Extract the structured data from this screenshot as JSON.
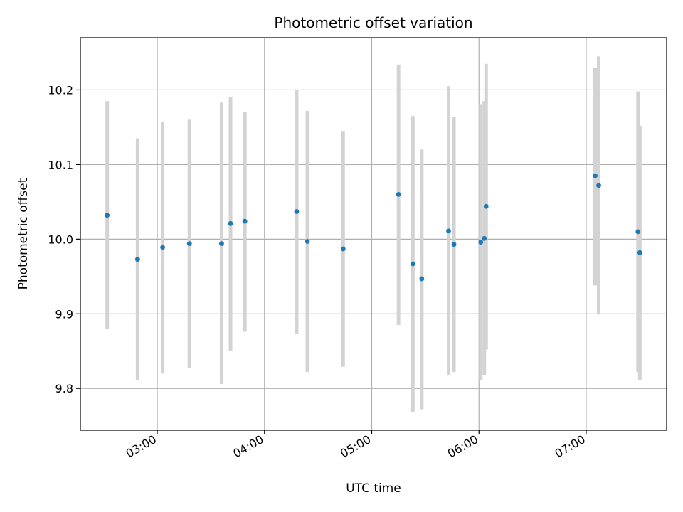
{
  "chart_data": {
    "type": "scatter",
    "title": "Photometric offset variation",
    "xlabel": "UTC time",
    "ylabel": "Photometric offset",
    "x_unit": "hours UTC",
    "xlim": [
      "02:17",
      "07:45"
    ],
    "ylim": [
      9.744,
      10.27
    ],
    "x_ticks": [
      "03:00",
      "04:00",
      "05:00",
      "06:00",
      "07:00"
    ],
    "y_ticks": [
      "9.8",
      "9.9",
      "10.0",
      "10.1",
      "10.2"
    ],
    "grid": true,
    "colors": {
      "point": "#1f77b4",
      "errorbar": "#d3d3d3",
      "grid": "#b0b0b0"
    },
    "points": [
      {
        "x": "02:32",
        "y": 10.032,
        "low": 9.88,
        "high": 10.185
      },
      {
        "x": "02:49",
        "y": 9.973,
        "low": 9.811,
        "high": 10.135
      },
      {
        "x": "03:03",
        "y": 9.989,
        "low": 9.82,
        "high": 10.157
      },
      {
        "x": "03:18",
        "y": 9.994,
        "low": 9.828,
        "high": 10.16
      },
      {
        "x": "03:36",
        "y": 9.994,
        "low": 9.806,
        "high": 10.183
      },
      {
        "x": "03:41",
        "y": 10.021,
        "low": 9.85,
        "high": 10.191
      },
      {
        "x": "03:49",
        "y": 10.024,
        "low": 9.876,
        "high": 10.17
      },
      {
        "x": "04:18",
        "y": 10.037,
        "low": 9.873,
        "high": 10.2
      },
      {
        "x": "04:24",
        "y": 9.997,
        "low": 9.822,
        "high": 10.172
      },
      {
        "x": "04:44",
        "y": 9.987,
        "low": 9.829,
        "high": 10.145
      },
      {
        "x": "05:15",
        "y": 10.06,
        "low": 9.885,
        "high": 10.234
      },
      {
        "x": "05:23",
        "y": 9.967,
        "low": 9.768,
        "high": 10.165
      },
      {
        "x": "05:28",
        "y": 9.947,
        "low": 9.772,
        "high": 10.12
      },
      {
        "x": "05:43",
        "y": 10.011,
        "low": 9.818,
        "high": 10.205
      },
      {
        "x": "05:46",
        "y": 9.993,
        "low": 9.822,
        "high": 10.164
      },
      {
        "x": "06:01",
        "y": 9.996,
        "low": 9.811,
        "high": 10.181
      },
      {
        "x": "06:03",
        "y": 10.001,
        "low": 9.818,
        "high": 10.185
      },
      {
        "x": "06:04",
        "y": 10.044,
        "low": 9.852,
        "high": 10.235
      },
      {
        "x": "07:05",
        "y": 10.085,
        "low": 9.938,
        "high": 10.23
      },
      {
        "x": "07:07",
        "y": 10.072,
        "low": 9.899,
        "high": 10.245
      },
      {
        "x": "07:29",
        "y": 10.01,
        "low": 9.822,
        "high": 10.198
      },
      {
        "x": "07:30",
        "y": 9.982,
        "low": 9.811,
        "high": 10.152
      }
    ]
  }
}
